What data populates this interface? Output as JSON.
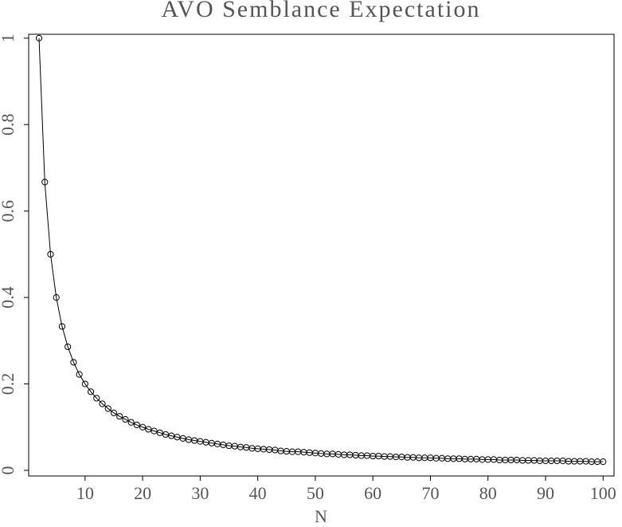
{
  "chart_data": {
    "type": "line",
    "title": "AVO Semblance Expectation",
    "x_label": "N",
    "x": [
      2,
      3,
      4,
      5,
      6,
      7,
      8,
      9,
      10,
      11,
      12,
      13,
      14,
      15,
      16,
      17,
      18,
      19,
      20,
      21,
      22,
      23,
      24,
      25,
      26,
      27,
      28,
      29,
      30,
      31,
      32,
      33,
      34,
      35,
      36,
      37,
      38,
      39,
      40,
      41,
      42,
      43,
      44,
      45,
      46,
      47,
      48,
      49,
      50,
      51,
      52,
      53,
      54,
      55,
      56,
      57,
      58,
      59,
      60,
      61,
      62,
      63,
      64,
      65,
      66,
      67,
      68,
      69,
      70,
      71,
      72,
      73,
      74,
      75,
      76,
      77,
      78,
      79,
      80,
      81,
      82,
      83,
      84,
      85,
      86,
      87,
      88,
      89,
      90,
      91,
      92,
      93,
      94,
      95,
      96,
      97,
      98,
      99,
      100
    ],
    "series": [
      {
        "color": "#000000",
        "markers": true,
        "values": [
          1,
          0.667,
          0.5,
          0.4,
          0.333,
          0.286,
          0.25,
          0.222,
          0.2,
          0.182,
          0.167,
          0.154,
          0.143,
          0.133,
          0.125,
          0.118,
          0.111,
          0.105,
          0.1,
          0.095,
          0.091,
          0.087,
          0.083,
          0.08,
          0.077,
          0.074,
          0.071,
          0.069,
          0.067,
          0.065,
          0.063,
          0.061,
          0.059,
          0.057,
          0.056,
          0.054,
          0.053,
          0.051,
          0.05,
          0.049,
          0.048,
          0.047,
          0.045,
          0.044,
          0.043,
          0.043,
          0.042,
          0.041,
          0.04,
          0.039,
          0.038,
          0.038,
          0.037,
          0.036,
          0.036,
          0.035,
          0.034,
          0.034,
          0.033,
          0.033,
          0.032,
          0.032,
          0.031,
          0.031,
          0.03,
          0.03,
          0.029,
          0.029,
          0.029,
          0.028,
          0.028,
          0.027,
          0.027,
          0.027,
          0.026,
          0.026,
          0.026,
          0.025,
          0.025,
          0.025,
          0.024,
          0.024,
          0.024,
          0.024,
          0.023,
          0.023,
          0.023,
          0.022,
          0.022,
          0.022,
          0.022,
          0.022,
          0.021,
          0.021,
          0.021,
          0.021,
          0.02,
          0.02,
          0.02
        ]
      }
    ],
    "xlim": [
      0.2,
      101.9
    ],
    "xticks": [
      10,
      20,
      30,
      40,
      50,
      60,
      70,
      80,
      90,
      100
    ],
    "ylim": [
      -0.013,
      1.009
    ],
    "yticks": [
      0,
      0.2,
      0.4,
      0.6,
      0.8,
      1
    ],
    "grid": false
  }
}
